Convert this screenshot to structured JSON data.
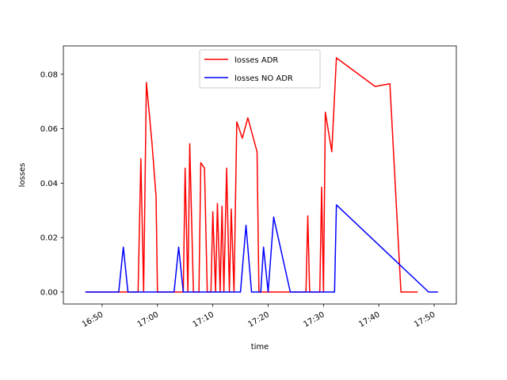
{
  "chart_data": {
    "type": "line",
    "xlabel": "time",
    "ylabel": "losses",
    "x_unit": "time of day (HH:MM)",
    "xlim": [
      "16:43",
      "17:54"
    ],
    "ylim": [
      -0.0044,
      0.0904
    ],
    "x_ticks": [
      "16:50",
      "17:00",
      "17:10",
      "17:20",
      "17:30",
      "17:40",
      "17:50"
    ],
    "y_ticks": [
      "0.00",
      "0.02",
      "0.04",
      "0.06",
      "0.08"
    ],
    "y_tick_values": [
      0,
      0.02,
      0.04,
      0.06,
      0.08
    ],
    "grid": false,
    "legend_position": "top-center",
    "series": [
      {
        "name": "losses ADR",
        "color": "#ff0000",
        "points": [
          [
            "16:47:00",
            0.0
          ],
          [
            "16:53:00",
            0.0
          ],
          [
            "16:55:00",
            0.0
          ],
          [
            "16:56:30",
            0.0
          ],
          [
            "16:57:00",
            0.049
          ],
          [
            "16:57:30",
            0.0
          ],
          [
            "16:58:00",
            0.077
          ],
          [
            "16:59:00",
            0.055
          ],
          [
            "16:59:45",
            0.035
          ],
          [
            "17:00:00",
            0.0
          ],
          [
            "17:03:00",
            0.0
          ],
          [
            "17:04:40",
            0.0
          ],
          [
            "17:05:00",
            0.0455
          ],
          [
            "17:05:30",
            0.0
          ],
          [
            "17:05:50",
            0.0545
          ],
          [
            "17:06:30",
            0.0
          ],
          [
            "17:07:30",
            0.0
          ],
          [
            "17:07:50",
            0.0475
          ],
          [
            "17:08:30",
            0.0455
          ],
          [
            "17:09:00",
            0.0
          ],
          [
            "17:09:40",
            0.0
          ],
          [
            "17:10:00",
            0.0295
          ],
          [
            "17:10:30",
            0.0
          ],
          [
            "17:10:50",
            0.0325
          ],
          [
            "17:11:20",
            0.0
          ],
          [
            "17:11:40",
            0.0315
          ],
          [
            "17:12:00",
            0.0
          ],
          [
            "17:12:30",
            0.0455
          ],
          [
            "17:13:00",
            0.0
          ],
          [
            "17:13:20",
            0.0305
          ],
          [
            "17:13:50",
            0.0
          ],
          [
            "17:14:20",
            0.0625
          ],
          [
            "17:15:20",
            0.0565
          ],
          [
            "17:16:20",
            0.064
          ],
          [
            "17:18:00",
            0.0515
          ],
          [
            "17:18:20",
            0.0
          ],
          [
            "17:26:50",
            0.0
          ],
          [
            "17:27:10",
            0.028
          ],
          [
            "17:27:30",
            0.0
          ],
          [
            "17:29:20",
            0.0
          ],
          [
            "17:29:40",
            0.0385
          ],
          [
            "17:30:00",
            0.0
          ],
          [
            "17:30:20",
            0.066
          ],
          [
            "17:31:30",
            0.0515
          ],
          [
            "17:32:20",
            0.086
          ],
          [
            "17:39:20",
            0.0755
          ],
          [
            "17:42:00",
            0.0765
          ],
          [
            "17:44:00",
            0.0
          ],
          [
            "17:47:00",
            0.0
          ]
        ]
      },
      {
        "name": "losses NO ADR",
        "color": "#0000ff",
        "points": [
          [
            "16:47:00",
            0.0
          ],
          [
            "16:53:00",
            0.0
          ],
          [
            "16:53:50",
            0.0165
          ],
          [
            "16:54:40",
            0.0
          ],
          [
            "17:03:00",
            0.0
          ],
          [
            "17:03:50",
            0.0165
          ],
          [
            "17:04:40",
            0.0
          ],
          [
            "17:15:00",
            0.0
          ],
          [
            "17:16:00",
            0.0245
          ],
          [
            "17:17:00",
            0.0
          ],
          [
            "17:18:40",
            0.0
          ],
          [
            "17:19:10",
            0.0165
          ],
          [
            "17:20:00",
            0.0
          ],
          [
            "17:21:00",
            0.0275
          ],
          [
            "17:24:00",
            0.0
          ],
          [
            "17:32:00",
            0.0
          ],
          [
            "17:32:20",
            0.032
          ],
          [
            "17:49:00",
            0.0
          ],
          [
            "17:50:40",
            0.0
          ]
        ]
      }
    ]
  }
}
